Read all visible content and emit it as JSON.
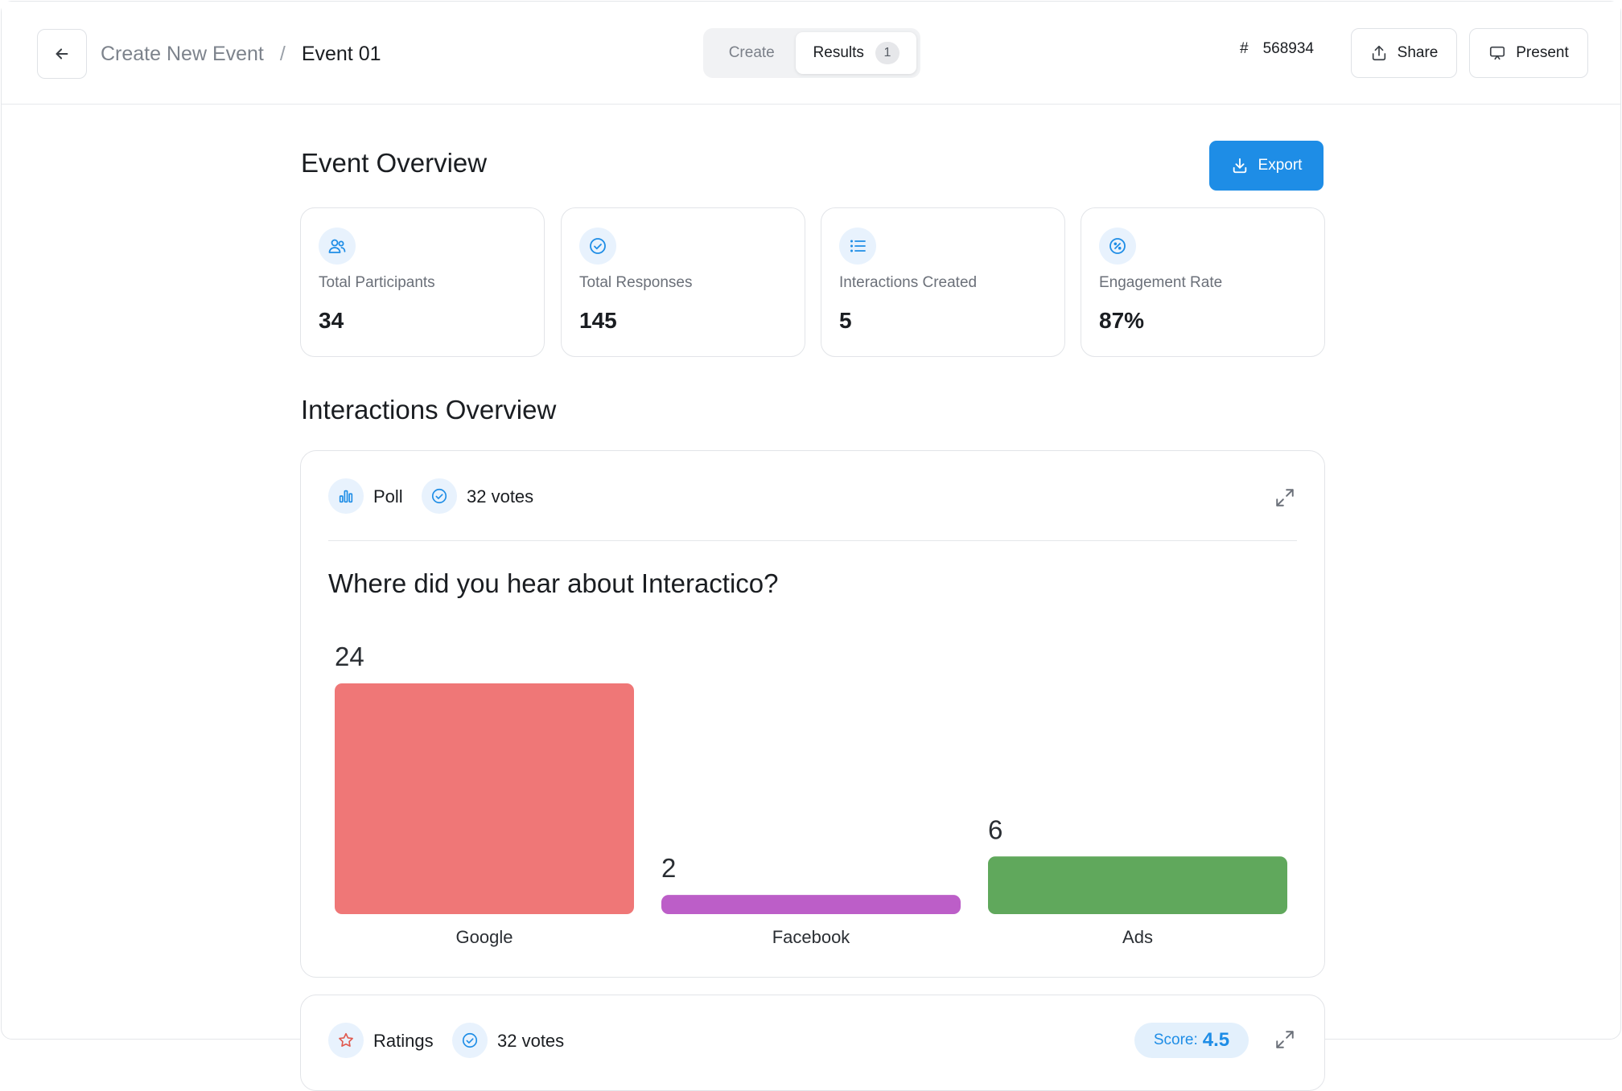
{
  "header": {
    "breadcrumb_parent": "Create New Event",
    "breadcrumb_sep": "/",
    "breadcrumb_current": "Event 01",
    "tabs": {
      "create": "Create",
      "results": "Results",
      "results_badge": "1"
    },
    "event_code_hash": "#",
    "event_code": "568934",
    "share_label": "Share",
    "present_label": "Present"
  },
  "overview": {
    "title": "Event Overview",
    "export_label": "Export",
    "stats": [
      {
        "label": "Total Participants",
        "value": "34",
        "icon": "users-icon"
      },
      {
        "label": "Total Responses",
        "value": "145",
        "icon": "check-circle-icon"
      },
      {
        "label": "Interactions Created",
        "value": "5",
        "icon": "list-icon"
      },
      {
        "label": "Engagement Rate",
        "value": "87%",
        "icon": "percent-icon"
      }
    ]
  },
  "interactions": {
    "title": "Interactions Overview",
    "poll": {
      "type_label": "Poll",
      "votes_label": "32 votes",
      "question": "Where did you hear about Interactico?"
    },
    "ratings": {
      "type_label": "Ratings",
      "votes_label": "32 votes",
      "score_label": "Score:",
      "score_value": "4.5"
    }
  },
  "colors": {
    "accent": "#1e8de6",
    "bar_google": "#ef7777",
    "bar_facebook": "#bc5ec8",
    "bar_ads": "#60a85c"
  },
  "chart_data": {
    "type": "bar",
    "categories": [
      "Google",
      "Facebook",
      "Ads"
    ],
    "values": [
      24,
      2,
      6
    ],
    "colors": [
      "#ef7777",
      "#bc5ec8",
      "#60a85c"
    ],
    "title": "Where did you hear about Interactico?",
    "xlabel": "",
    "ylabel": "",
    "grid": false
  }
}
